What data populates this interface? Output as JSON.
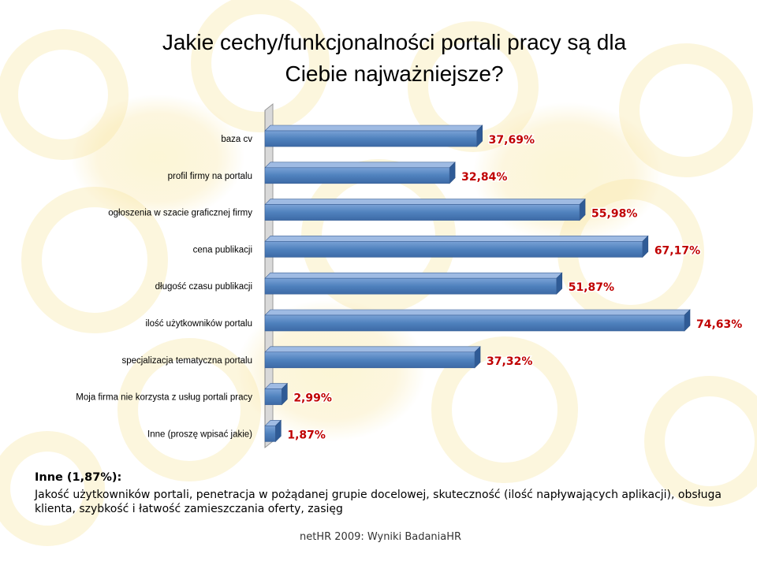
{
  "title_line1": "Jakie cechy/funkcjonalności portali pracy są dla",
  "title_line2": "Ciebie najważniejsze?",
  "chart_data": {
    "type": "bar",
    "orientation": "horizontal",
    "categories": [
      "baza cv",
      "profil firmy na portalu",
      "ogłoszenia w szacie graficznej firmy",
      "cena publikacji",
      "długość czasu publikacji",
      "ilość użytkowników portalu",
      "specjalizacja tematyczna portalu",
      "Moja firma nie korzysta z usług portali pracy",
      "Inne (proszę wpisać jakie)"
    ],
    "values": [
      37.69,
      32.84,
      55.98,
      67.17,
      51.87,
      74.63,
      37.32,
      2.99,
      1.87
    ],
    "data_labels": [
      "37,69%",
      "32,84%",
      "55,98%",
      "67,17%",
      "51,87%",
      "74,63%",
      "37,32%",
      "2,99%",
      "1,87%"
    ],
    "title": "Jakie cechy/funkcjonalności portali pracy są dla Ciebie najważniejsze?",
    "xlim": [
      0,
      80
    ],
    "grid": false,
    "legend": "none",
    "bar_color": "#4f81bd",
    "label_color": "#c00000"
  },
  "note": {
    "heading": "Inne (1,87%):",
    "text": "Jakość użytkowników portali, penetracja w pożądanej grupie docelowej, skuteczność (ilość napływających aplikacji), obsługa klienta, szybkość i łatwość zamieszczania oferty, zasięg"
  },
  "footer": "netHR 2009: Wyniki BadaniaHR"
}
